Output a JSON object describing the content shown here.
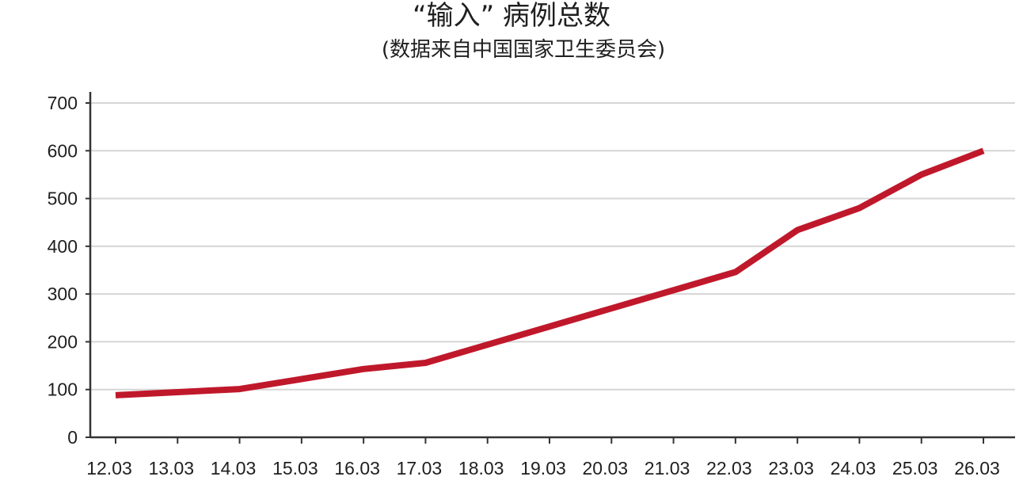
{
  "chart_data": {
    "type": "line",
    "title": "“输入” 病例总数",
    "subtitle": "(数据来自中国国家卫生委员会)",
    "xlabel": "",
    "ylabel": "",
    "categories": [
      "12.03",
      "13.03",
      "14.03",
      "15.03",
      "16.03",
      "17.03",
      "18.03",
      "19.03",
      "20.03",
      "21.03",
      "22.03",
      "23.03",
      "24.03",
      "25.03",
      "26.03"
    ],
    "series": [
      {
        "values": [
          88,
          95,
          101,
          123,
          143,
          156,
          null,
          null,
          null,
          null,
          346,
          434,
          480,
          550,
          600
        ],
        "points": [
          [
            "12.03",
            88
          ],
          [
            "14.03",
            101
          ],
          [
            "16.03",
            143
          ],
          [
            "17.03",
            156
          ],
          [
            "22.03",
            346
          ],
          [
            "23.03",
            434
          ],
          [
            "24.03",
            480
          ],
          [
            "25.03",
            550
          ],
          [
            "26.03",
            600
          ]
        ],
        "color": "#c0182b"
      }
    ],
    "yticks": [
      "0",
      "100",
      "200",
      "300",
      "400",
      "500",
      "600",
      "700"
    ],
    "ylim": [
      0,
      700
    ],
    "grid": true,
    "legend": "none"
  }
}
